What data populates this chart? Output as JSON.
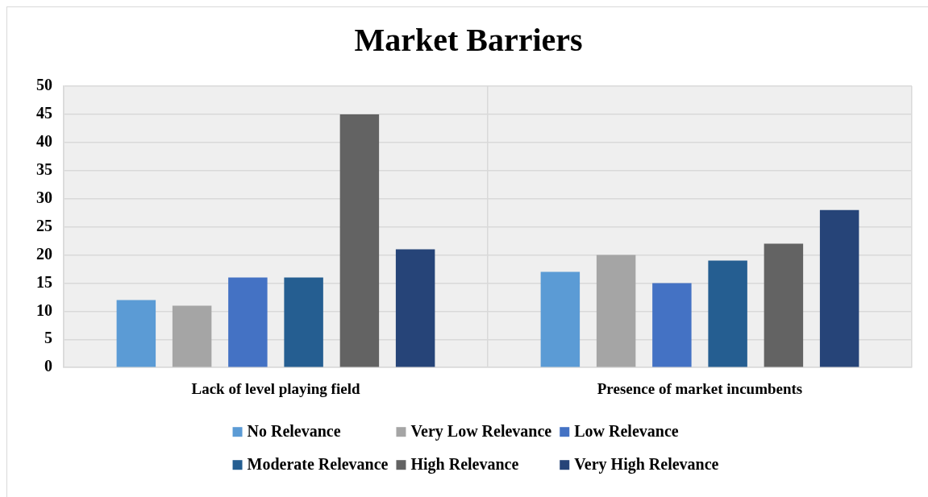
{
  "chart_data": {
    "type": "bar",
    "title": "Market Barriers",
    "categories": [
      "Lack of level playing field",
      "Presence of market incumbents"
    ],
    "series": [
      {
        "name": "No Relevance",
        "color": "#5b9bd5",
        "values": [
          12,
          17
        ]
      },
      {
        "name": "Very Low Relevance",
        "color": "#a5a5a5",
        "values": [
          11,
          20
        ]
      },
      {
        "name": "Low Relevance",
        "color": "#4472c4",
        "values": [
          16,
          15
        ]
      },
      {
        "name": "Moderate Relevance",
        "color": "#255e91",
        "values": [
          16,
          19
        ]
      },
      {
        "name": "High Relevance",
        "color": "#636363",
        "values": [
          45,
          22
        ]
      },
      {
        "name": "Very High Relevance",
        "color": "#264478",
        "values": [
          21,
          28
        ]
      }
    ],
    "ylim": [
      0,
      50
    ],
    "yticks": [
      0,
      5,
      10,
      15,
      20,
      25,
      30,
      35,
      40,
      45,
      50
    ],
    "grid": true,
    "legend": "bottom"
  }
}
